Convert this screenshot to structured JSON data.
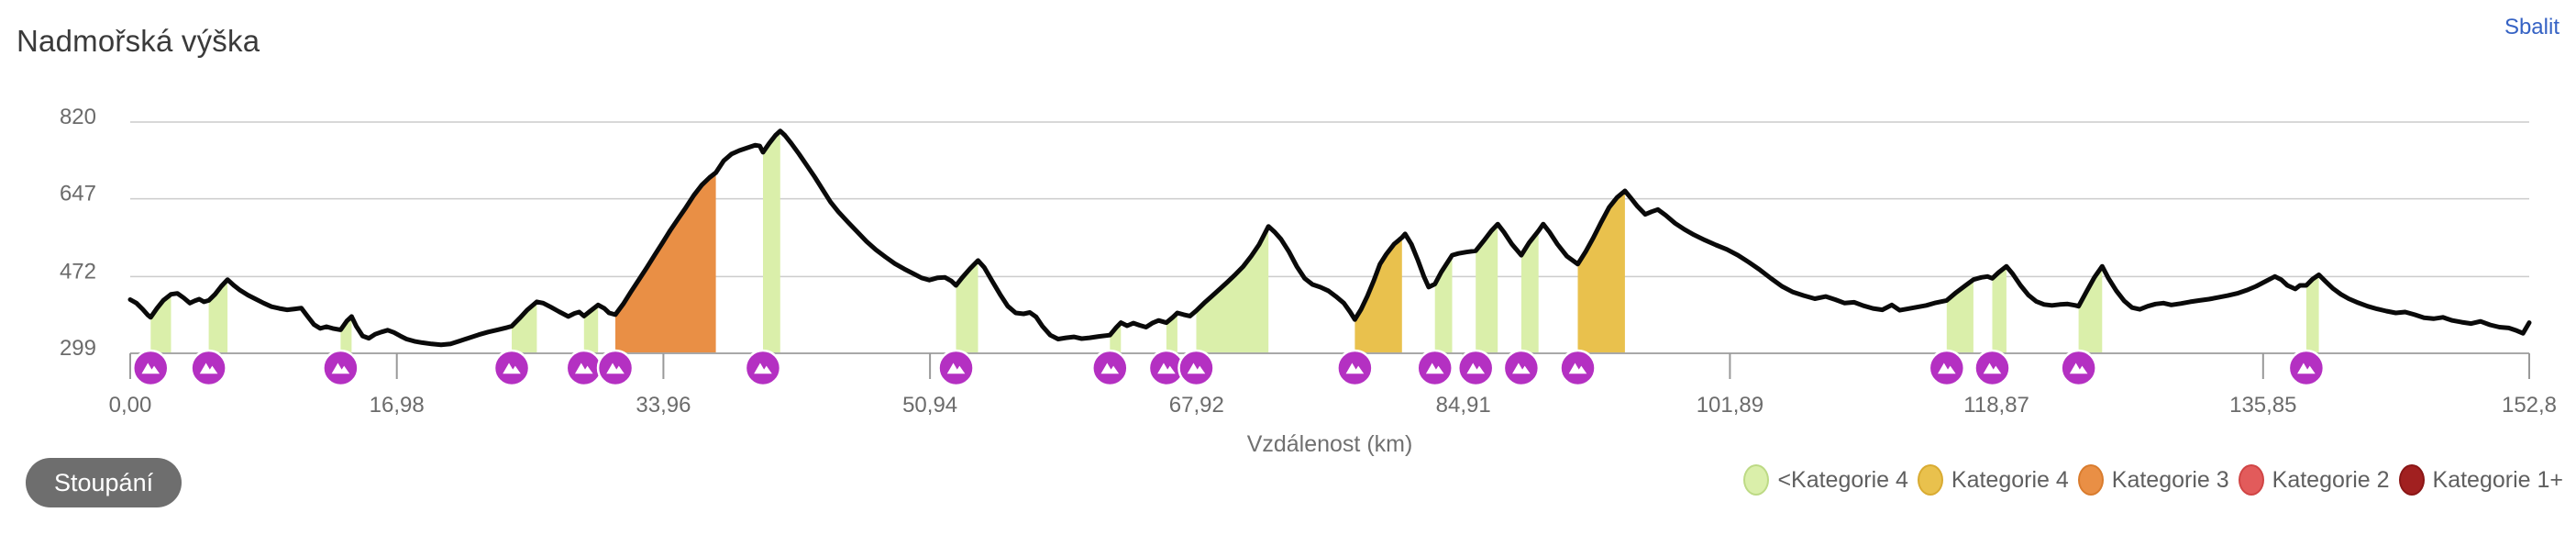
{
  "header": {
    "title": "Nadmořská výška",
    "collapse_link": "Sbalit"
  },
  "controls": {
    "climbs_button": "Stoupání"
  },
  "legend": {
    "items": [
      {
        "label": "<Kategorie 4",
        "color": "#daefaa",
        "border": "#bdda85"
      },
      {
        "label": "Kategorie 4",
        "color": "#e9c14d",
        "border": "#d9ab32"
      },
      {
        "label": "Kategorie 3",
        "color": "#e98f45",
        "border": "#d97c2e"
      },
      {
        "label": "Kategorie 2",
        "color": "#e25b5b",
        "border": "#d04545"
      },
      {
        "label": "Kategorie 1+",
        "color": "#a12020",
        "border": "#8a1616"
      }
    ]
  },
  "chart_data": {
    "type": "area",
    "title": "Nadmořská výška",
    "xlabel": "Vzdálenost (km)",
    "ylabel": "",
    "x_range": [
      0,
      152.8
    ],
    "y_range": [
      299,
      820
    ],
    "grid": true,
    "legend_position": "bottom-right",
    "x_ticks": [
      {
        "label": "0,00",
        "value": 0
      },
      {
        "label": "16,98",
        "value": 16.98
      },
      {
        "label": "33,96",
        "value": 33.96
      },
      {
        "label": "50,94",
        "value": 50.94
      },
      {
        "label": "67,92",
        "value": 67.92
      },
      {
        "label": "84,91",
        "value": 84.91
      },
      {
        "label": "101,89",
        "value": 101.89
      },
      {
        "label": "118,87",
        "value": 118.87
      },
      {
        "label": "135,85",
        "value": 135.85
      },
      {
        "label": "152,8",
        "value": 152.8
      }
    ],
    "y_ticks": [
      {
        "label": "299",
        "value": 299
      },
      {
        "label": "472",
        "value": 472
      },
      {
        "label": "647",
        "value": 647
      },
      {
        "label": "820",
        "value": 820
      }
    ],
    "line_color": "#0a0a0a",
    "grid_color": "#cccccc",
    "axis_color": "#a8a8a8",
    "tick_color": "#999999",
    "tick_label_color": "#6b6b6b",
    "axis_title_color": "#707070",
    "marker_color": "#b430c2",
    "category_colors": {
      "<Kategorie 4": "#daefaa",
      "Kategorie 4": "#e9c14d",
      "Kategorie 3": "#e98f45",
      "Kategorie 2": "#e25b5b",
      "Kategorie 1+": "#a12020"
    },
    "climbs": [
      {
        "start_km": 1.3,
        "end_km": 2.6,
        "category": "<Kategorie 4"
      },
      {
        "start_km": 5.0,
        "end_km": 6.2,
        "category": "<Kategorie 4"
      },
      {
        "start_km": 13.4,
        "end_km": 14.1,
        "category": "<Kategorie 4"
      },
      {
        "start_km": 24.3,
        "end_km": 25.9,
        "category": "<Kategorie 4"
      },
      {
        "start_km": 28.9,
        "end_km": 29.8,
        "category": "<Kategorie 4"
      },
      {
        "start_km": 30.9,
        "end_km": 37.3,
        "category": "Kategorie 3"
      },
      {
        "start_km": 40.3,
        "end_km": 41.4,
        "category": "<Kategorie 4"
      },
      {
        "start_km": 52.6,
        "end_km": 54.0,
        "category": "<Kategorie 4"
      },
      {
        "start_km": 62.4,
        "end_km": 63.1,
        "category": "<Kategorie 4"
      },
      {
        "start_km": 66.0,
        "end_km": 66.7,
        "category": "<Kategorie 4"
      },
      {
        "start_km": 67.9,
        "end_km": 72.5,
        "category": "<Kategorie 4"
      },
      {
        "start_km": 78.0,
        "end_km": 81.0,
        "category": "Kategorie 4"
      },
      {
        "start_km": 83.1,
        "end_km": 84.2,
        "category": "<Kategorie 4"
      },
      {
        "start_km": 85.7,
        "end_km": 87.1,
        "category": "<Kategorie 4"
      },
      {
        "start_km": 88.6,
        "end_km": 89.7,
        "category": "<Kategorie 4"
      },
      {
        "start_km": 92.2,
        "end_km": 95.2,
        "category": "Kategorie 4"
      },
      {
        "start_km": 115.7,
        "end_km": 117.4,
        "category": "<Kategorie 4"
      },
      {
        "start_km": 118.6,
        "end_km": 119.5,
        "category": "<Kategorie 4"
      },
      {
        "start_km": 124.1,
        "end_km": 125.6,
        "category": "<Kategorie 4"
      },
      {
        "start_km": 138.6,
        "end_km": 139.4,
        "category": "<Kategorie 4"
      }
    ],
    "profile": [
      [
        0,
        420
      ],
      [
        0.4,
        412
      ],
      [
        0.8,
        398
      ],
      [
        1.1,
        386
      ],
      [
        1.3,
        380
      ],
      [
        1.7,
        400
      ],
      [
        2.1,
        418
      ],
      [
        2.6,
        432
      ],
      [
        3.0,
        434
      ],
      [
        3.4,
        424
      ],
      [
        3.8,
        412
      ],
      [
        4.1,
        417
      ],
      [
        4.4,
        421
      ],
      [
        4.7,
        415
      ],
      [
        5.0,
        418
      ],
      [
        5.4,
        432
      ],
      [
        5.8,
        450
      ],
      [
        6.2,
        465
      ],
      [
        6.6,
        452
      ],
      [
        7.0,
        441
      ],
      [
        7.5,
        430
      ],
      [
        8.0,
        421
      ],
      [
        8.5,
        412
      ],
      [
        9.0,
        404
      ],
      [
        9.5,
        400
      ],
      [
        10.0,
        397
      ],
      [
        10.5,
        399
      ],
      [
        10.9,
        401
      ],
      [
        11.3,
        382
      ],
      [
        11.7,
        364
      ],
      [
        12.1,
        355
      ],
      [
        12.5,
        359
      ],
      [
        12.9,
        355
      ],
      [
        13.4,
        352
      ],
      [
        13.8,
        372
      ],
      [
        14.1,
        382
      ],
      [
        14.4,
        360
      ],
      [
        14.8,
        338
      ],
      [
        15.2,
        333
      ],
      [
        15.6,
        342
      ],
      [
        16.0,
        347
      ],
      [
        16.4,
        351
      ],
      [
        16.8,
        346
      ],
      [
        17.2,
        338
      ],
      [
        17.6,
        331
      ],
      [
        18.1,
        326
      ],
      [
        18.6,
        323
      ],
      [
        19.2,
        320
      ],
      [
        19.8,
        318
      ],
      [
        20.4,
        320
      ],
      [
        21.0,
        327
      ],
      [
        21.6,
        334
      ],
      [
        22.2,
        341
      ],
      [
        22.8,
        347
      ],
      [
        23.4,
        352
      ],
      [
        24.0,
        357
      ],
      [
        24.3,
        360
      ],
      [
        24.8,
        378
      ],
      [
        25.3,
        397
      ],
      [
        25.9,
        415
      ],
      [
        26.3,
        412
      ],
      [
        26.8,
        403
      ],
      [
        27.3,
        393
      ],
      [
        27.9,
        382
      ],
      [
        28.3,
        389
      ],
      [
        28.6,
        392
      ],
      [
        28.9,
        383
      ],
      [
        29.3,
        394
      ],
      [
        29.8,
        408
      ],
      [
        30.2,
        400
      ],
      [
        30.5,
        390
      ],
      [
        30.9,
        386
      ],
      [
        31.4,
        410
      ],
      [
        31.9,
        438
      ],
      [
        32.4,
        465
      ],
      [
        32.9,
        492
      ],
      [
        33.4,
        520
      ],
      [
        33.9,
        548
      ],
      [
        34.4,
        576
      ],
      [
        34.9,
        602
      ],
      [
        35.4,
        628
      ],
      [
        35.9,
        655
      ],
      [
        36.4,
        678
      ],
      [
        36.9,
        695
      ],
      [
        37.3,
        706
      ],
      [
        37.8,
        733
      ],
      [
        38.3,
        748
      ],
      [
        38.8,
        756
      ],
      [
        39.3,
        762
      ],
      [
        39.8,
        768
      ],
      [
        40.1,
        766
      ],
      [
        40.3,
        752
      ],
      [
        40.7,
        772
      ],
      [
        41.1,
        790
      ],
      [
        41.4,
        800
      ],
      [
        41.7,
        790
      ],
      [
        42.1,
        772
      ],
      [
        42.6,
        748
      ],
      [
        43.1,
        722
      ],
      [
        43.6,
        696
      ],
      [
        44.1,
        668
      ],
      [
        44.6,
        640
      ],
      [
        45.1,
        618
      ],
      [
        45.7,
        595
      ],
      [
        46.3,
        573
      ],
      [
        46.9,
        551
      ],
      [
        47.5,
        532
      ],
      [
        48.1,
        516
      ],
      [
        48.7,
        501
      ],
      [
        49.3,
        489
      ],
      [
        49.9,
        478
      ],
      [
        50.4,
        469
      ],
      [
        50.9,
        464
      ],
      [
        51.4,
        469
      ],
      [
        51.9,
        470
      ],
      [
        52.3,
        462
      ],
      [
        52.6,
        452
      ],
      [
        53.0,
        470
      ],
      [
        53.5,
        490
      ],
      [
        54.0,
        508
      ],
      [
        54.4,
        492
      ],
      [
        54.9,
        462
      ],
      [
        55.4,
        432
      ],
      [
        55.9,
        405
      ],
      [
        56.4,
        390
      ],
      [
        56.9,
        388
      ],
      [
        57.3,
        391
      ],
      [
        57.7,
        381
      ],
      [
        58.1,
        360
      ],
      [
        58.6,
        340
      ],
      [
        59.1,
        331
      ],
      [
        59.6,
        334
      ],
      [
        60.1,
        336
      ],
      [
        60.6,
        332
      ],
      [
        61.1,
        334
      ],
      [
        61.7,
        337
      ],
      [
        62.4,
        340
      ],
      [
        62.8,
        357
      ],
      [
        63.1,
        368
      ],
      [
        63.5,
        361
      ],
      [
        63.9,
        367
      ],
      [
        64.3,
        362
      ],
      [
        64.7,
        358
      ],
      [
        65.1,
        367
      ],
      [
        65.5,
        373
      ],
      [
        66.0,
        368
      ],
      [
        66.4,
        380
      ],
      [
        66.7,
        390
      ],
      [
        67.1,
        386
      ],
      [
        67.5,
        383
      ],
      [
        67.9,
        395
      ],
      [
        68.4,
        412
      ],
      [
        68.9,
        428
      ],
      [
        69.4,
        444
      ],
      [
        69.9,
        460
      ],
      [
        70.4,
        477
      ],
      [
        70.9,
        495
      ],
      [
        71.4,
        518
      ],
      [
        71.9,
        544
      ],
      [
        72.5,
        585
      ],
      [
        72.9,
        572
      ],
      [
        73.3,
        556
      ],
      [
        73.8,
        528
      ],
      [
        74.3,
        495
      ],
      [
        74.8,
        468
      ],
      [
        75.3,
        454
      ],
      [
        75.8,
        448
      ],
      [
        76.3,
        440
      ],
      [
        76.8,
        427
      ],
      [
        77.3,
        412
      ],
      [
        77.7,
        392
      ],
      [
        78.0,
        375
      ],
      [
        78.4,
        398
      ],
      [
        78.8,
        428
      ],
      [
        79.2,
        462
      ],
      [
        79.6,
        500
      ],
      [
        80.0,
        522
      ],
      [
        80.5,
        545
      ],
      [
        81.0,
        560
      ],
      [
        81.2,
        568
      ],
      [
        81.6,
        545
      ],
      [
        82.0,
        510
      ],
      [
        82.4,
        472
      ],
      [
        82.7,
        448
      ],
      [
        83.1,
        455
      ],
      [
        83.5,
        482
      ],
      [
        84.2,
        520
      ],
      [
        84.6,
        524
      ],
      [
        85.1,
        527
      ],
      [
        85.7,
        530
      ],
      [
        86.2,
        552
      ],
      [
        86.7,
        575
      ],
      [
        87.1,
        590
      ],
      [
        87.5,
        572
      ],
      [
        88.0,
        545
      ],
      [
        88.6,
        520
      ],
      [
        89.1,
        548
      ],
      [
        89.7,
        575
      ],
      [
        90.0,
        590
      ],
      [
        90.4,
        572
      ],
      [
        90.9,
        545
      ],
      [
        91.5,
        518
      ],
      [
        92.2,
        500
      ],
      [
        92.7,
        528
      ],
      [
        93.2,
        560
      ],
      [
        93.7,
        595
      ],
      [
        94.2,
        628
      ],
      [
        94.7,
        650
      ],
      [
        95.2,
        665
      ],
      [
        95.6,
        648
      ],
      [
        96.0,
        630
      ],
      [
        96.5,
        612
      ],
      [
        96.9,
        618
      ],
      [
        97.3,
        623
      ],
      [
        97.8,
        610
      ],
      [
        98.4,
        592
      ],
      [
        99.0,
        578
      ],
      [
        99.6,
        566
      ],
      [
        100.3,
        554
      ],
      [
        101.0,
        543
      ],
      [
        101.7,
        533
      ],
      [
        102.4,
        520
      ],
      [
        103.1,
        504
      ],
      [
        103.8,
        487
      ],
      [
        104.5,
        468
      ],
      [
        105.2,
        450
      ],
      [
        105.9,
        437
      ],
      [
        106.6,
        429
      ],
      [
        107.3,
        422
      ],
      [
        108.0,
        427
      ],
      [
        108.6,
        420
      ],
      [
        109.2,
        412
      ],
      [
        109.8,
        414
      ],
      [
        110.4,
        406
      ],
      [
        111.0,
        400
      ],
      [
        111.6,
        397
      ],
      [
        112.2,
        408
      ],
      [
        112.7,
        396
      ],
      [
        113.2,
        399
      ],
      [
        113.8,
        403
      ],
      [
        114.4,
        407
      ],
      [
        115.0,
        413
      ],
      [
        115.7,
        418
      ],
      [
        116.3,
        436
      ],
      [
        116.9,
        452
      ],
      [
        117.4,
        465
      ],
      [
        117.9,
        470
      ],
      [
        118.3,
        472
      ],
      [
        118.6,
        468
      ],
      [
        119.0,
        481
      ],
      [
        119.5,
        495
      ],
      [
        119.9,
        478
      ],
      [
        120.4,
        452
      ],
      [
        120.9,
        430
      ],
      [
        121.4,
        416
      ],
      [
        121.9,
        409
      ],
      [
        122.4,
        407
      ],
      [
        122.9,
        409
      ],
      [
        123.4,
        410
      ],
      [
        123.9,
        407
      ],
      [
        124.1,
        405
      ],
      [
        124.6,
        438
      ],
      [
        125.1,
        470
      ],
      [
        125.6,
        495
      ],
      [
        126.0,
        468
      ],
      [
        126.5,
        440
      ],
      [
        127.0,
        417
      ],
      [
        127.5,
        402
      ],
      [
        128.0,
        398
      ],
      [
        128.5,
        405
      ],
      [
        129.0,
        410
      ],
      [
        129.5,
        412
      ],
      [
        130.0,
        408
      ],
      [
        130.6,
        411
      ],
      [
        131.2,
        415
      ],
      [
        131.8,
        418
      ],
      [
        132.4,
        421
      ],
      [
        133.0,
        425
      ],
      [
        133.6,
        429
      ],
      [
        134.2,
        434
      ],
      [
        134.8,
        441
      ],
      [
        135.4,
        450
      ],
      [
        136.0,
        461
      ],
      [
        136.6,
        472
      ],
      [
        137.0,
        465
      ],
      [
        137.4,
        452
      ],
      [
        137.9,
        444
      ],
      [
        138.2,
        452
      ],
      [
        138.6,
        452
      ],
      [
        139.0,
        466
      ],
      [
        139.4,
        476
      ],
      [
        139.8,
        462
      ],
      [
        140.3,
        445
      ],
      [
        140.8,
        432
      ],
      [
        141.3,
        422
      ],
      [
        141.9,
        413
      ],
      [
        142.5,
        405
      ],
      [
        143.1,
        399
      ],
      [
        143.7,
        394
      ],
      [
        144.3,
        390
      ],
      [
        144.9,
        392
      ],
      [
        145.5,
        386
      ],
      [
        146.1,
        379
      ],
      [
        146.7,
        377
      ],
      [
        147.3,
        380
      ],
      [
        147.9,
        373
      ],
      [
        148.5,
        369
      ],
      [
        149.1,
        366
      ],
      [
        149.7,
        371
      ],
      [
        150.3,
        363
      ],
      [
        150.9,
        358
      ],
      [
        151.5,
        356
      ],
      [
        152.0,
        350
      ],
      [
        152.4,
        344
      ],
      [
        152.8,
        368
      ]
    ]
  }
}
